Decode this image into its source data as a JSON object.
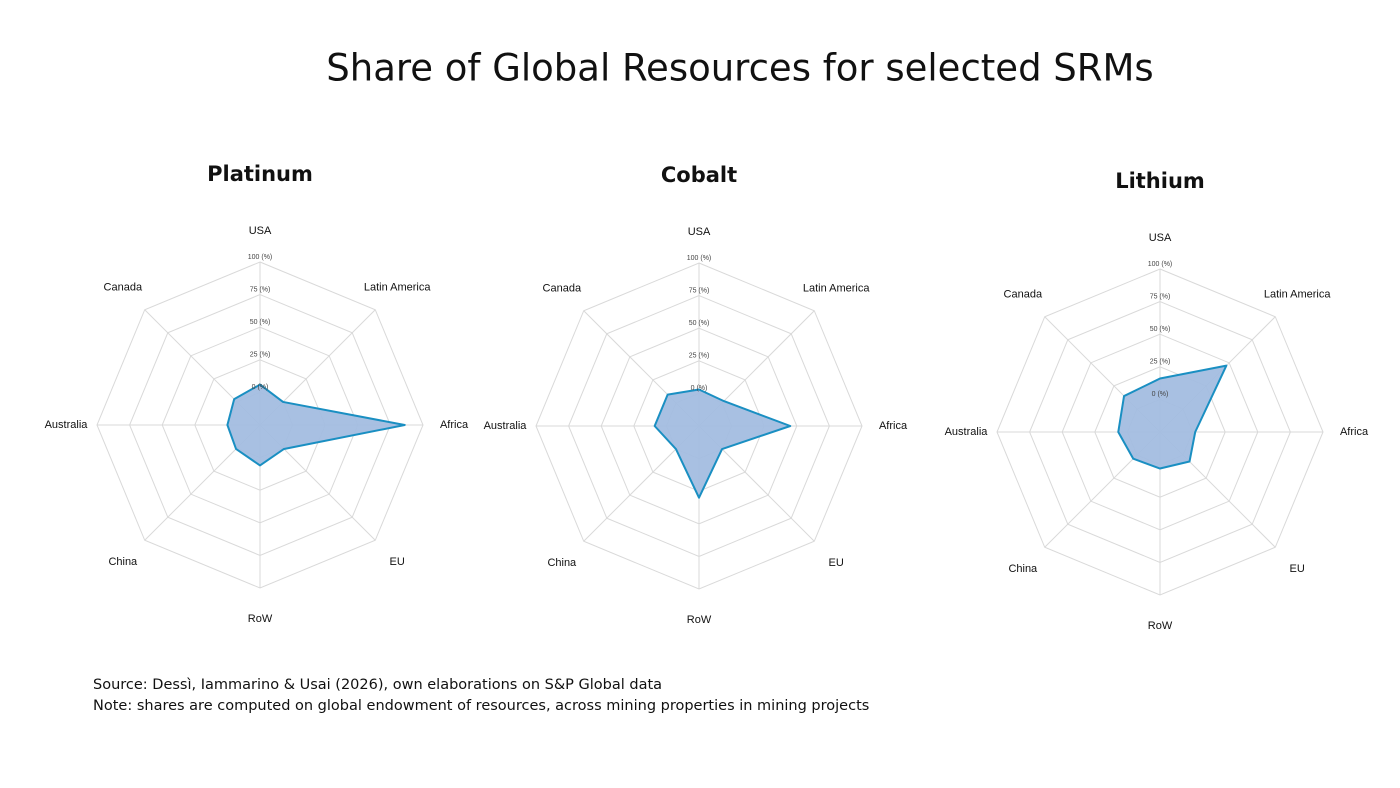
{
  "title": "Share of Global Resources for selected SRMs",
  "source": "Source: Dessì, Iammarino & Usai (2026), own elaborations on S&P Global data",
  "note": "Note: shares are computed on global endowment of resources, across mining properties in mining projects",
  "chart_data": [
    {
      "type": "radar",
      "title": "Platinum",
      "categories": [
        "USA",
        "Latin America",
        "Africa",
        "EU",
        "RoW",
        "China",
        "Australia",
        "Canada"
      ],
      "values": [
        6,
        0,
        86,
        1,
        6,
        1,
        0,
        3
      ],
      "color": "#1a8fc2",
      "fill_color": "#a3bde0",
      "ylim": [
        -25,
        100
      ],
      "yticks": [
        {
          "value": 0,
          "label": "0 (%)"
        },
        {
          "value": 25,
          "label": "25 (%)"
        },
        {
          "value": 50,
          "label": "50 (%)"
        },
        {
          "value": 75,
          "label": "75 (%)"
        },
        {
          "value": 100,
          "label": "100 (%)"
        }
      ],
      "grid": true
    },
    {
      "type": "radar",
      "title": "Cobalt",
      "categories": [
        "USA",
        "Latin America",
        "Africa",
        "EU",
        "RoW",
        "China",
        "Australia",
        "Canada"
      ],
      "values": [
        3,
        2,
        45,
        0,
        30,
        0,
        9,
        9
      ],
      "color": "#1a8fc2",
      "fill_color": "#a3bde0",
      "ylim": [
        -25,
        100
      ],
      "yticks": [
        {
          "value": 0,
          "label": "0 (%)"
        },
        {
          "value": 25,
          "label": "25 (%)"
        },
        {
          "value": 50,
          "label": "50 (%)"
        },
        {
          "value": 75,
          "label": "75 (%)"
        },
        {
          "value": 100,
          "label": "100 (%)"
        }
      ],
      "grid": true
    },
    {
      "type": "radar",
      "title": "Lithium",
      "categories": [
        "USA",
        "Latin America",
        "Africa",
        "EU",
        "RoW",
        "China",
        "Australia",
        "Canada"
      ],
      "values": [
        16,
        47,
        2,
        7,
        3,
        4,
        7,
        14
      ],
      "color": "#1a8fc2",
      "fill_color": "#a3bde0",
      "ylim": [
        -25,
        100
      ],
      "yticks": [
        {
          "value": 0,
          "label": "0 (%)"
        },
        {
          "value": 25,
          "label": "25 (%)"
        },
        {
          "value": 50,
          "label": "50 (%)"
        },
        {
          "value": 75,
          "label": "75 (%)"
        },
        {
          "value": 100,
          "label": "100 (%)"
        }
      ],
      "grid": true
    }
  ]
}
